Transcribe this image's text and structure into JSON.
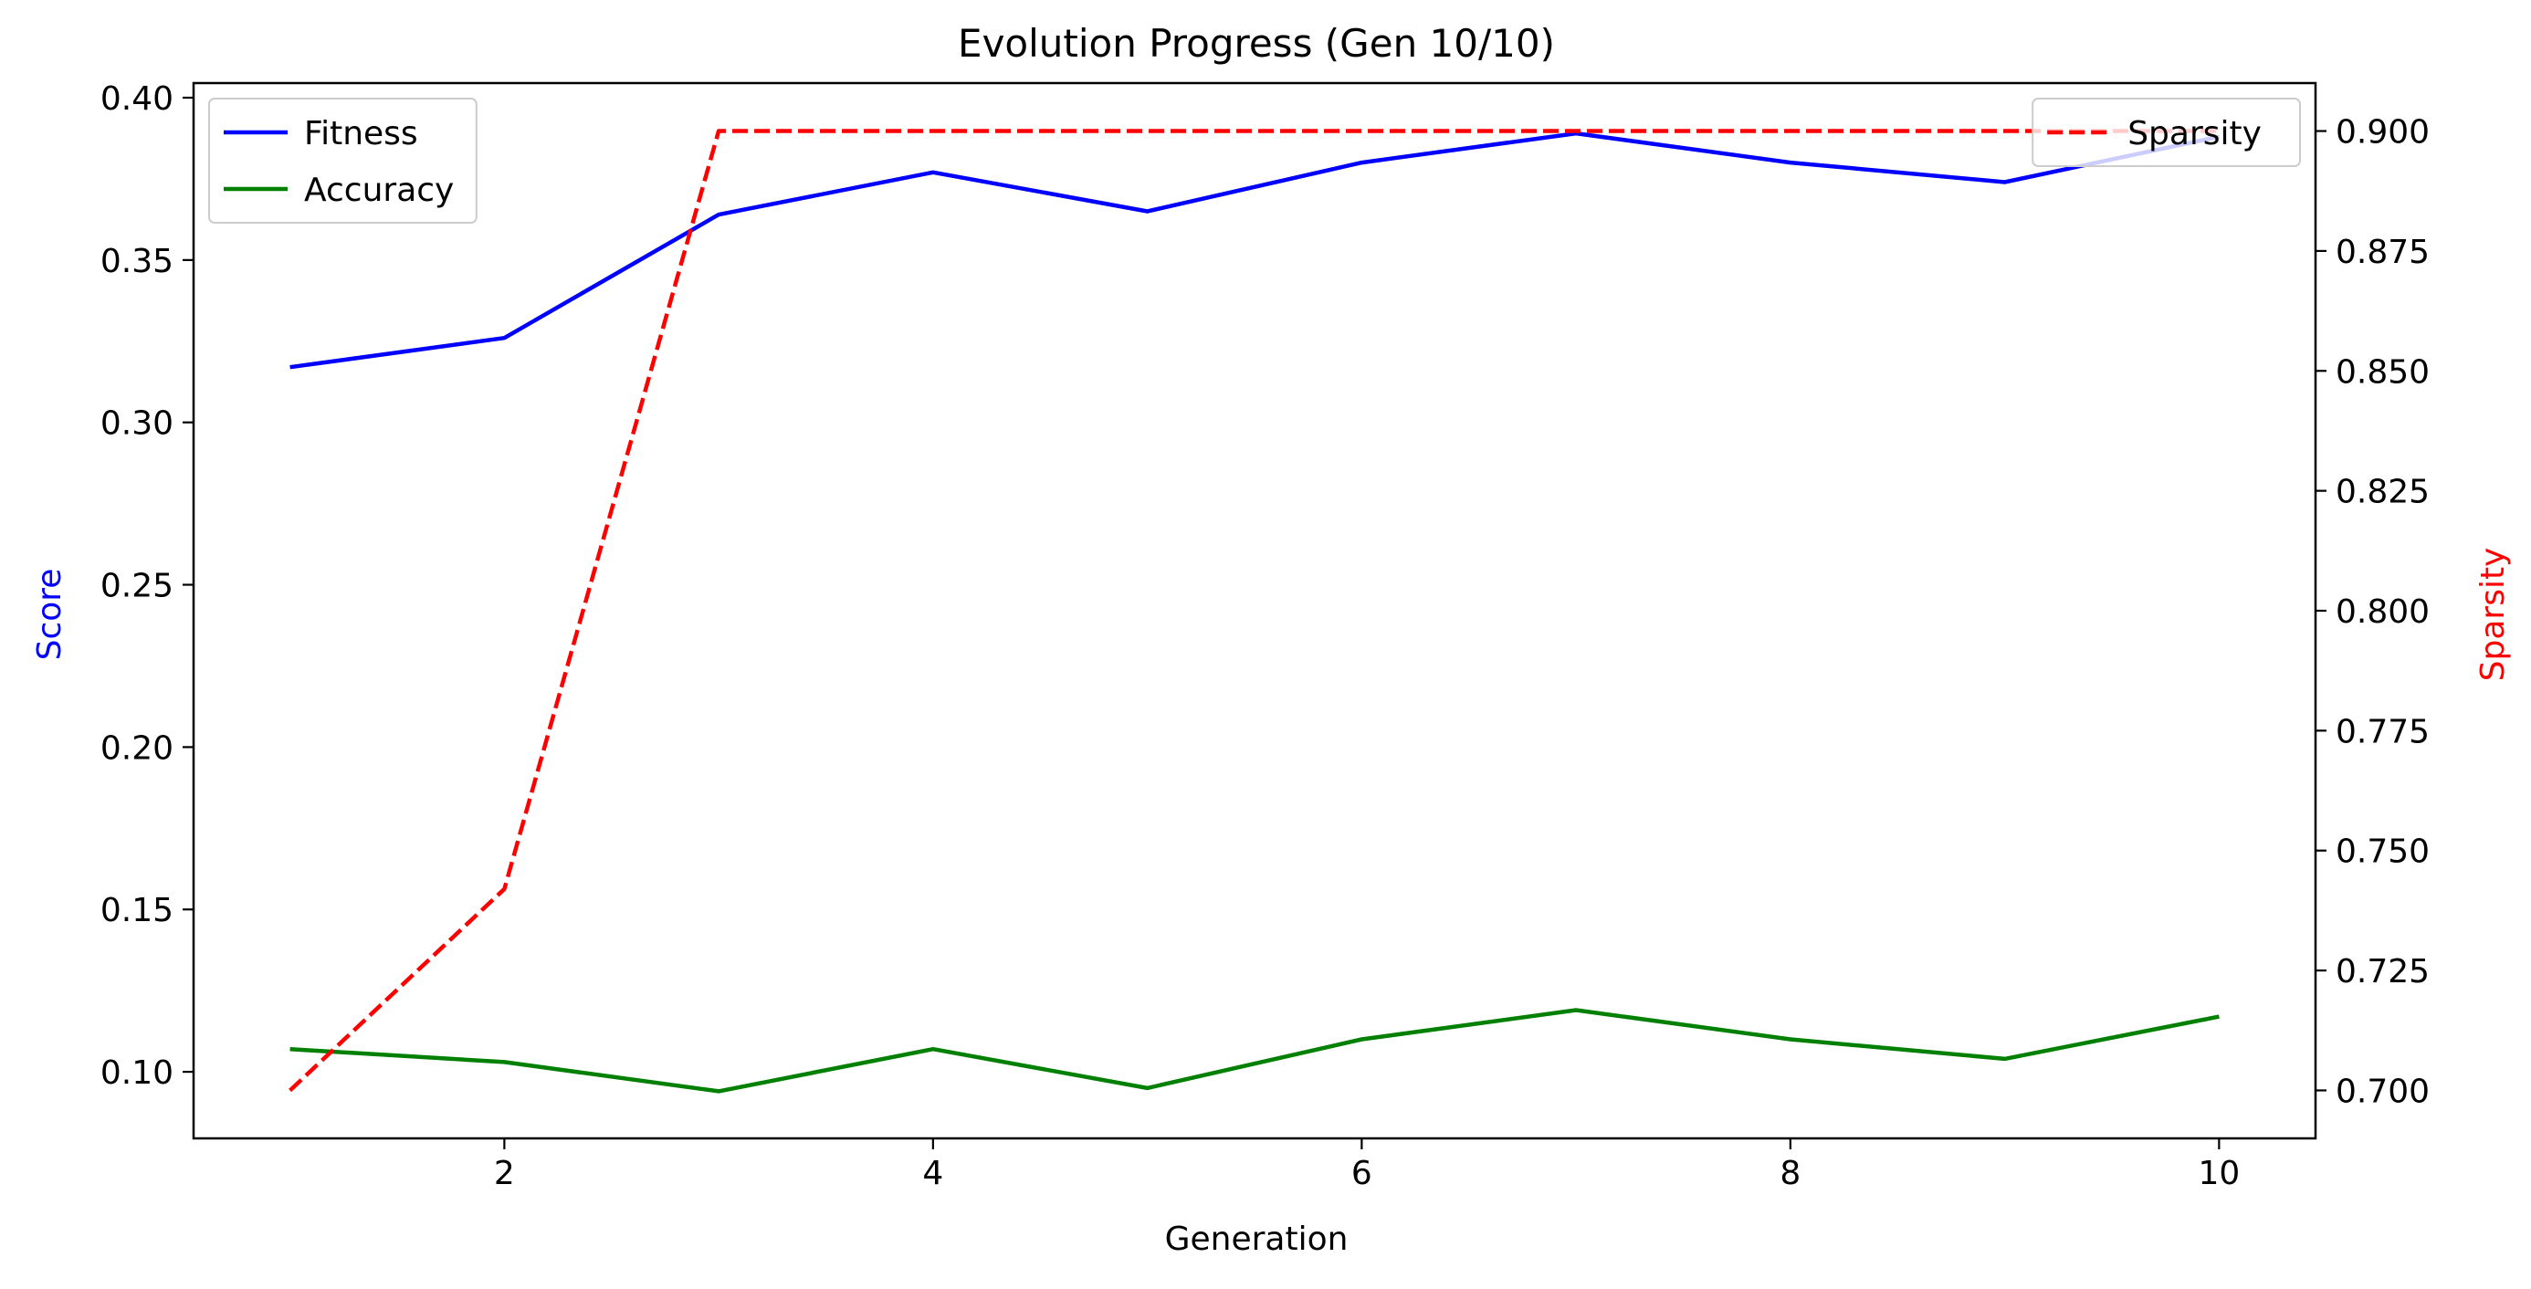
{
  "chart_data": {
    "type": "line",
    "title": "Evolution Progress (Gen 10/10)",
    "xlabel": "Generation",
    "ylabel": "Score",
    "y2label": "Sparsity",
    "xlim": [
      0.55,
      10.45
    ],
    "ylim": [
      0.0795,
      0.4045
    ],
    "y2lim": [
      0.69,
      0.91
    ],
    "xticks": [
      2,
      4,
      6,
      8,
      10
    ],
    "yticks": [
      0.1,
      0.15,
      0.2,
      0.25,
      0.3,
      0.35,
      0.4
    ],
    "y2ticks": [
      0.7,
      0.725,
      0.75,
      0.775,
      0.8,
      0.825,
      0.85,
      0.875,
      0.9
    ],
    "xtick_labels": [
      "2",
      "4",
      "6",
      "8",
      "10"
    ],
    "ytick_labels": [
      "0.10",
      "0.15",
      "0.20",
      "0.25",
      "0.30",
      "0.35",
      "0.40"
    ],
    "y2tick_labels": [
      "0.700",
      "0.725",
      "0.750",
      "0.775",
      "0.800",
      "0.825",
      "0.850",
      "0.875",
      "0.900"
    ],
    "grid": false,
    "x": [
      1,
      2,
      3,
      4,
      5,
      6,
      7,
      8,
      9,
      10
    ],
    "series": [
      {
        "name": "Fitness",
        "axis": "left",
        "color": "#0000ff",
        "style": "solid",
        "values": [
          0.317,
          0.326,
          0.364,
          0.377,
          0.365,
          0.38,
          0.389,
          0.38,
          0.374,
          0.388
        ]
      },
      {
        "name": "Accuracy",
        "axis": "left",
        "color": "#008000",
        "style": "solid",
        "values": [
          0.107,
          0.103,
          0.094,
          0.107,
          0.095,
          0.11,
          0.119,
          0.11,
          0.104,
          0.117
        ]
      },
      {
        "name": "Sparsity",
        "axis": "right",
        "color": "#ff0000",
        "style": "dashed",
        "values": [
          0.7,
          0.742,
          0.9,
          0.9,
          0.9,
          0.9,
          0.9,
          0.9,
          0.9,
          0.9
        ]
      }
    ],
    "legends": [
      {
        "placement": "top-left",
        "entries": [
          "Fitness",
          "Accuracy"
        ]
      },
      {
        "placement": "top-right",
        "entries": [
          "Sparsity"
        ]
      }
    ],
    "ylabel_color": "#0000ff",
    "y2label_color": "#ff0000"
  }
}
